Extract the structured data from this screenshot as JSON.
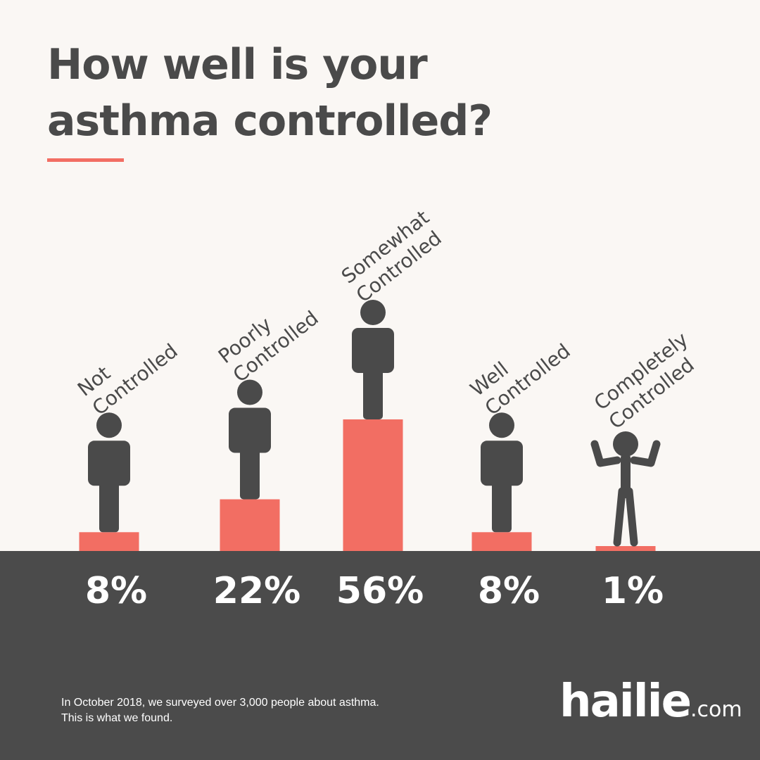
{
  "title_lines": [
    "How well is your",
    "asthma controlled?"
  ],
  "colors": {
    "background": "#faf7f4",
    "bar": "#f26e63",
    "figure": "#4a4a4a",
    "band": "#4b4b4b",
    "text_light": "#ffffff"
  },
  "chart_data": {
    "type": "bar",
    "categories": [
      [
        "Not",
        "Controlled"
      ],
      [
        "Poorly",
        "Controlled"
      ],
      [
        "Somewhat",
        "Controlled"
      ],
      [
        "Well",
        "Controlled"
      ],
      [
        "Completely",
        "Controlled"
      ]
    ],
    "values": [
      8,
      22,
      56,
      8,
      1
    ],
    "value_labels": [
      "8%",
      "22%",
      "56%",
      "8%",
      "1%"
    ],
    "unit": "%",
    "figure_pose": [
      "standing",
      "standing",
      "standing",
      "standing",
      "arms-raised"
    ],
    "title": "How well is your asthma controlled?",
    "xlabel": "",
    "ylabel": "",
    "grid": false,
    "legend": "none"
  },
  "footnote_lines": [
    "In October 2018, we surveyed over 3,000 people about asthma.",
    "This is what we found."
  ],
  "logo": {
    "main": "hailie",
    "tld": ".com"
  }
}
